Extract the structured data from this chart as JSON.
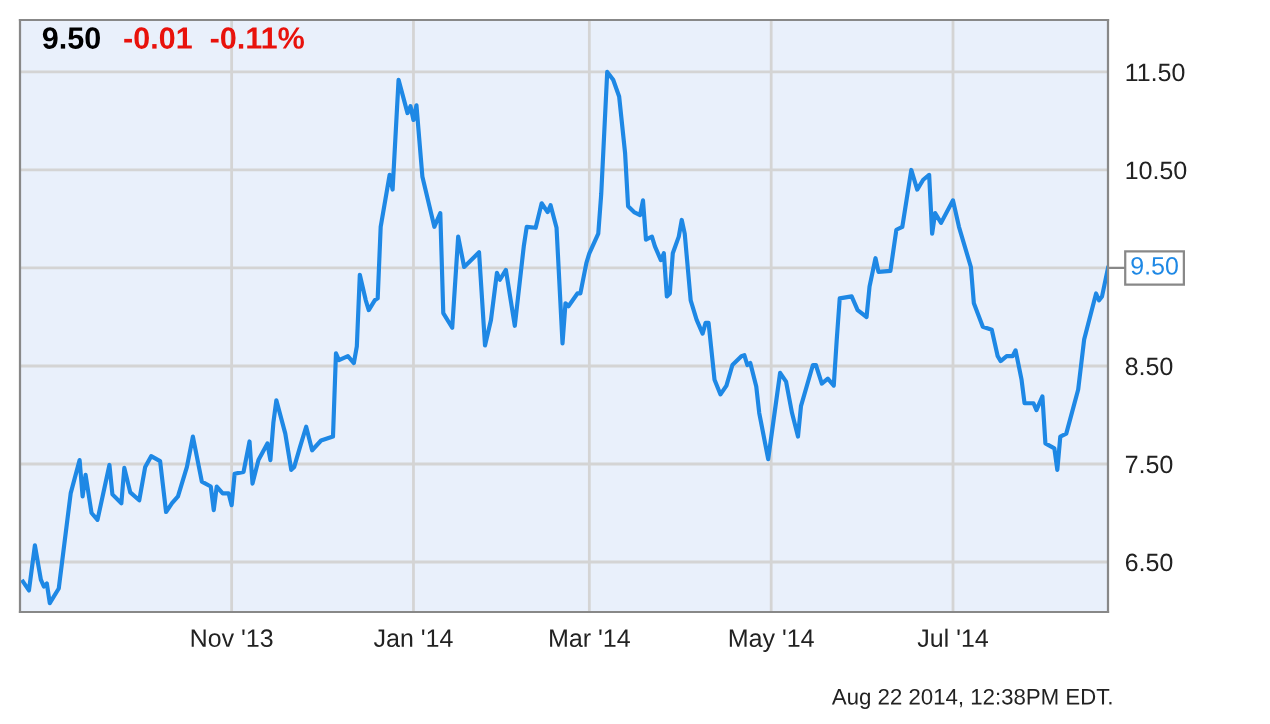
{
  "chart_data": {
    "type": "line",
    "title": "9.50",
    "subtitle": "-0.01  -0.11%",
    "annotations": [
      "Aug 22 2014, 12:38PM EDT.",
      "9.50"
    ],
    "x": [
      "2013-08-23",
      "2013-08-25",
      "2013-08-27",
      "2013-08-29",
      "2013-08-30",
      "2013-08-31",
      "2013-09-01",
      "2013-09-04",
      "2013-09-08",
      "2013-09-11",
      "2013-09-12",
      "2013-09-13",
      "2013-09-15",
      "2013-09-17",
      "2013-09-21",
      "2013-09-22",
      "2013-09-25",
      "2013-09-26",
      "2013-09-28",
      "2013-10-01",
      "2013-10-03",
      "2013-10-05",
      "2013-10-08",
      "2013-10-10",
      "2013-10-12",
      "2013-10-14",
      "2013-10-17",
      "2013-10-19",
      "2013-10-22",
      "2013-10-25",
      "2013-10-26",
      "2013-10-27",
      "2013-10-29",
      "2013-10-31",
      "2013-11-01",
      "2013-11-02",
      "2013-11-05",
      "2013-11-07",
      "2013-11-08",
      "2013-11-10",
      "2013-11-13",
      "2013-11-14",
      "2013-11-15",
      "2013-11-16",
      "2013-11-19",
      "2013-11-21",
      "2013-11-22",
      "2013-11-24",
      "2013-11-26",
      "2013-11-28",
      "2013-12-01",
      "2013-12-05",
      "2013-12-06",
      "2013-12-07",
      "2013-12-10",
      "2013-12-12",
      "2013-12-13",
      "2013-12-14",
      "2013-12-16",
      "2013-12-17",
      "2013-12-19",
      "2013-12-20",
      "2013-12-21",
      "2013-12-24",
      "2013-12-25",
      "2013-12-27",
      "2013-12-30",
      "2013-12-31",
      "2014-01-01",
      "2014-01-02",
      "2014-01-04",
      "2014-01-08",
      "2014-01-09",
      "2014-01-10",
      "2014-01-11",
      "2014-01-14",
      "2014-01-16",
      "2014-01-18",
      "2014-01-23",
      "2014-01-25",
      "2014-01-27",
      "2014-01-29",
      "2014-01-30",
      "2014-02-01",
      "2014-02-04",
      "2014-02-07",
      "2014-02-08",
      "2014-02-11",
      "2014-02-13",
      "2014-02-15",
      "2014-02-16",
      "2014-02-18",
      "2014-02-20",
      "2014-02-21",
      "2014-02-22",
      "2014-02-25",
      "2014-02-26",
      "2014-02-28",
      "2014-03-01",
      "2014-03-04",
      "2014-03-05",
      "2014-03-07",
      "2014-03-09",
      "2014-03-11",
      "2014-03-13",
      "2014-03-14",
      "2014-03-16",
      "2014-03-18",
      "2014-03-19",
      "2014-03-20",
      "2014-03-22",
      "2014-03-23",
      "2014-03-25",
      "2014-03-26",
      "2014-03-27",
      "2014-03-28",
      "2014-03-29",
      "2014-03-31",
      "2014-04-01",
      "2014-04-02",
      "2014-04-04",
      "2014-04-06",
      "2014-04-08",
      "2014-04-09",
      "2014-04-10",
      "2014-04-12",
      "2014-04-14",
      "2014-04-16",
      "2014-04-18",
      "2014-04-21",
      "2014-04-22",
      "2014-04-23",
      "2014-04-24",
      "2014-04-26",
      "2014-04-27",
      "2014-04-30",
      "2014-05-04",
      "2014-05-06",
      "2014-05-08",
      "2014-05-10",
      "2014-05-11",
      "2014-05-15",
      "2014-05-16",
      "2014-05-18",
      "2014-05-20",
      "2014-05-22",
      "2014-05-23",
      "2014-05-24",
      "2014-05-28",
      "2014-05-30",
      "2014-06-02",
      "2014-06-03",
      "2014-06-05",
      "2014-06-06",
      "2014-06-10",
      "2014-06-12",
      "2014-06-14",
      "2014-06-17",
      "2014-06-19",
      "2014-06-21",
      "2014-06-23",
      "2014-06-24",
      "2014-06-25",
      "2014-06-27",
      "2014-07-01",
      "2014-07-03",
      "2014-07-07",
      "2014-07-08",
      "2014-07-11",
      "2014-07-14",
      "2014-07-16",
      "2014-07-17",
      "2014-07-19",
      "2014-07-21",
      "2014-07-22",
      "2014-07-24",
      "2014-07-25",
      "2014-07-28",
      "2014-07-29",
      "2014-07-31",
      "2014-08-01",
      "2014-08-04",
      "2014-08-05",
      "2014-08-06",
      "2014-08-08",
      "2014-08-12",
      "2014-08-14",
      "2014-08-18",
      "2014-08-19",
      "2014-08-20",
      "2014-08-22"
    ],
    "series": [
      {
        "color": "#1e88e5",
        "values": [
          6.3,
          6.21,
          6.67,
          6.32,
          6.25,
          6.28,
          6.08,
          6.23,
          7.2,
          7.54,
          7.17,
          7.39,
          7.0,
          6.93,
          7.49,
          7.19,
          7.1,
          7.46,
          7.21,
          7.13,
          7.47,
          7.58,
          7.53,
          7.01,
          7.1,
          7.17,
          7.47,
          7.78,
          7.32,
          7.27,
          7.03,
          7.27,
          7.2,
          7.2,
          7.08,
          7.4,
          7.42,
          7.73,
          7.3,
          7.54,
          7.71,
          7.54,
          7.92,
          8.15,
          7.81,
          7.44,
          7.47,
          7.68,
          7.88,
          7.64,
          7.74,
          7.78,
          8.63,
          8.56,
          8.6,
          8.53,
          8.7,
          9.43,
          9.17,
          9.07,
          9.17,
          9.19,
          9.92,
          10.45,
          10.3,
          11.42,
          11.08,
          11.15,
          11.01,
          11.16,
          10.43,
          9.92,
          9.99,
          10.06,
          9.04,
          8.89,
          9.82,
          9.51,
          9.66,
          8.71,
          8.97,
          9.45,
          9.38,
          9.48,
          8.91,
          9.72,
          9.92,
          9.91,
          10.16,
          10.07,
          10.14,
          9.91,
          8.73,
          9.14,
          9.11,
          9.24,
          9.24,
          9.55,
          9.65,
          9.85,
          10.26,
          11.5,
          11.42,
          11.25,
          10.67,
          10.13,
          10.07,
          10.04,
          10.19,
          9.79,
          9.82,
          9.72,
          9.58,
          9.65,
          9.21,
          9.24,
          9.65,
          9.82,
          9.99,
          9.85,
          9.17,
          8.97,
          8.83,
          8.94,
          8.94,
          8.36,
          8.21,
          8.3,
          8.51,
          8.6,
          8.61,
          8.51,
          8.53,
          8.29,
          8.02,
          7.55,
          8.43,
          8.34,
          8.02,
          7.78,
          8.09,
          8.51,
          8.51,
          8.32,
          8.37,
          8.3,
          8.77,
          9.19,
          9.21,
          9.07,
          9.0,
          9.31,
          9.6,
          9.46,
          9.47,
          9.89,
          9.92,
          10.5,
          10.3,
          10.4,
          10.45,
          9.85,
          10.06,
          9.96,
          10.19,
          9.92,
          9.51,
          9.14,
          8.9,
          8.87,
          8.6,
          8.55,
          8.6,
          8.6,
          8.66,
          8.36,
          8.12,
          8.12,
          8.05,
          8.19,
          7.71,
          7.66,
          7.44,
          7.78,
          7.81,
          8.26,
          8.77,
          9.24,
          9.17,
          9.21,
          9.5
        ]
      }
    ],
    "xlim": [
      "2013-08-22",
      "2014-08-22"
    ],
    "xticks": [
      {
        "value": "2013-11-01",
        "label": "Nov '13"
      },
      {
        "value": "2014-01-01",
        "label": "Jan '14"
      },
      {
        "value": "2014-03-01",
        "label": "Mar '14"
      },
      {
        "value": "2014-05-01",
        "label": "May '14"
      },
      {
        "value": "2014-07-01",
        "label": "Jul '14"
      }
    ],
    "ylim": [
      5.99,
      12.03
    ],
    "yticks": [
      {
        "value": 6.5,
        "label": "6.50"
      },
      {
        "value": 7.5,
        "label": "7.50"
      },
      {
        "value": 8.5,
        "label": "8.50"
      },
      {
        "value": 9.5,
        "label": null
      },
      {
        "value": 10.5,
        "label": "10.50"
      },
      {
        "value": 11.5,
        "label": "11.50"
      }
    ],
    "grid": true
  }
}
